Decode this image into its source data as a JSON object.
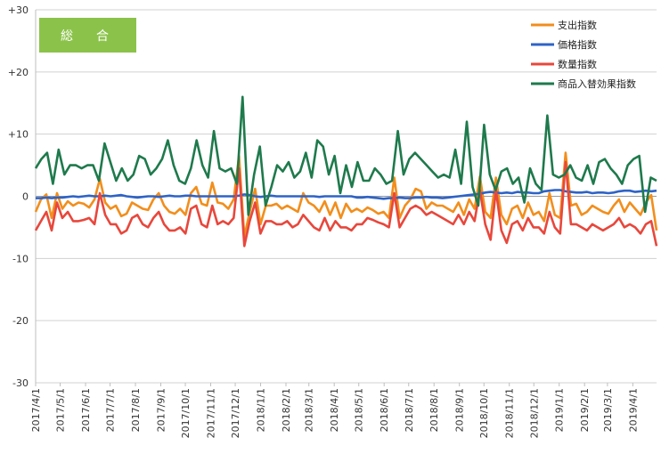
{
  "chart_data": {
    "type": "line",
    "title": "総　合",
    "ylim": [
      -30,
      30
    ],
    "yticks": [
      "+30",
      "+20",
      "+10",
      "0",
      "-10",
      "-20",
      "-30"
    ],
    "yticks_values": [
      30,
      20,
      10,
      0,
      -10,
      -20,
      -30
    ],
    "x_tick_labels": [
      "2017/4/1",
      "2017/5/1",
      "2017/6/1",
      "2017/7/1",
      "2017/8/1",
      "2017/9/1",
      "2017/10/1",
      "2017/11/1",
      "2017/12/1",
      "2018/1/1",
      "2018/2/1",
      "2018/3/1",
      "2018/4/1",
      "2018/5/1",
      "2018/6/1",
      "2018/7/1",
      "2018/8/1",
      "2018/9/1",
      "2018/10/1",
      "2018/11/1",
      "2018/12/1",
      "2019/1/1",
      "2019/2/1",
      "2019/3/1",
      "2019/4/1"
    ],
    "x_start": "2017/4/1",
    "x_end": "2019/4/30",
    "x_weekly_points": 109,
    "legend_position": "top-right",
    "grid": "horizontal",
    "series": [
      {
        "name": "支出指数",
        "color": "#F28E1C",
        "values": [
          -2.5,
          -0.5,
          0.3,
          -3.5,
          0.5,
          -2.0,
          -0.8,
          -1.5,
          -1.0,
          -1.2,
          -1.8,
          -0.5,
          2.8,
          -1.0,
          -2.0,
          -1.5,
          -3.2,
          -2.8,
          -1.0,
          -1.5,
          -2.0,
          -2.2,
          -0.5,
          0.5,
          -1.5,
          -2.5,
          -2.8,
          -2.0,
          -3.0,
          0.5,
          1.5,
          -1.2,
          -1.5,
          2.2,
          -1.0,
          -1.2,
          -2.0,
          -0.5,
          6.5,
          -6.5,
          -2.5,
          1.2,
          -4.5,
          -1.5,
          -1.5,
          -1.2,
          -2.0,
          -1.5,
          -2.0,
          -2.5,
          0.5,
          -1.0,
          -1.5,
          -2.5,
          -0.8,
          -3.0,
          -1.0,
          -3.5,
          -1.2,
          -2.5,
          -2.0,
          -2.5,
          -1.8,
          -2.2,
          -2.8,
          -2.5,
          -3.5,
          3.0,
          -3.5,
          -1.5,
          -0.5,
          1.2,
          0.8,
          -2.0,
          -1.0,
          -1.5,
          -1.5,
          -2.0,
          -2.5,
          -1.0,
          -3.0,
          -0.5,
          -2.0,
          3.2,
          -2.5,
          -3.5,
          3.0,
          -3.0,
          -4.5,
          -2.0,
          -1.5,
          -3.5,
          -1.0,
          -3.0,
          -2.5,
          -4.0,
          0.5,
          -3.0,
          -3.5,
          7.0,
          -1.5,
          -1.2,
          -3.0,
          -2.5,
          -1.5,
          -2.0,
          -2.5,
          -2.8,
          -1.5
        ],
        "tail": [
          -0.5,
          -2.5,
          -1.0,
          -2.0,
          -3.0,
          -1.0,
          0.2,
          -5.5
        ]
      },
      {
        "name": "価格指数",
        "color": "#2E63C7",
        "values": [
          -0.3,
          -0.3,
          -0.2,
          -0.3,
          -0.2,
          -0.2,
          -0.1,
          0.0,
          -0.1,
          0.0,
          0.1,
          0.0,
          0.0,
          0.1,
          0.0,
          0.1,
          0.2,
          0.0,
          -0.1,
          -0.2,
          -0.1,
          0.0,
          0.0,
          -0.1,
          0.0,
          0.1,
          0.0,
          0.0,
          0.1,
          0.1,
          0.0,
          0.0,
          0.0,
          0.0,
          0.0,
          0.0,
          0.0,
          0.0,
          0.1,
          0.3,
          0.2,
          0.0,
          -0.1,
          0.0,
          0.1,
          0.0,
          0.0,
          0.0,
          0.0,
          0.0,
          0.0,
          0.0,
          0.0,
          -0.1,
          0.0,
          0.0,
          0.0,
          0.0,
          0.0,
          0.0,
          -0.2,
          -0.2,
          -0.1,
          -0.2,
          -0.3,
          -0.4,
          -0.3,
          -0.3,
          -0.2,
          -0.3,
          -0.3,
          -0.2,
          -0.2,
          -0.1,
          -0.2,
          -0.2,
          -0.3,
          -0.2,
          -0.1,
          0.0,
          0.1,
          0.2,
          0.3,
          0.4,
          0.6,
          0.7,
          0.6,
          0.5,
          0.6,
          0.5,
          0.7,
          0.6,
          0.6,
          0.5,
          0.5,
          0.8,
          0.9,
          1.0,
          1.0,
          0.8,
          0.7,
          0.6,
          0.6,
          0.7,
          0.5,
          0.6,
          0.6,
          0.5,
          0.6
        ],
        "tail": [
          0.8,
          0.9,
          0.9,
          0.7,
          0.8,
          0.9,
          0.8,
          0.9
        ]
      },
      {
        "name": "数量指数",
        "color": "#E8473C",
        "values": [
          -5.5,
          -4.0,
          -2.5,
          -5.5,
          -1.0,
          -3.5,
          -2.5,
          -4.0,
          -4.0,
          -3.8,
          -3.5,
          -4.5,
          0.5,
          -3.0,
          -4.5,
          -4.5,
          -6.0,
          -5.5,
          -3.5,
          -3.0,
          -4.5,
          -5.0,
          -3.5,
          -2.5,
          -4.5,
          -5.5,
          -5.5,
          -5.0,
          -6.0,
          -2.0,
          -1.5,
          -4.5,
          -5.0,
          -1.5,
          -4.5,
          -4.0,
          -4.5,
          -3.5,
          4.5,
          -8.0,
          -4.0,
          -1.0,
          -6.0,
          -4.0,
          -4.0,
          -4.5,
          -4.5,
          -4.0,
          -5.0,
          -4.5,
          -3.0,
          -4.0,
          -5.0,
          -5.5,
          -3.5,
          -5.5,
          -4.0,
          -5.0,
          -5.0,
          -5.5,
          -4.5,
          -4.5,
          -3.5,
          -3.8,
          -4.2,
          -4.5,
          -5.0,
          0.5,
          -5.0,
          -3.5,
          -2.0,
          -1.5,
          -2.0,
          -3.0,
          -2.5,
          -3.0,
          -3.5,
          -4.0,
          -4.5,
          -3.0,
          -4.5,
          -2.5,
          -4.0,
          1.0,
          -4.5,
          -7.0,
          1.0,
          -5.5,
          -7.5,
          -4.5,
          -4.0,
          -5.5,
          -3.5,
          -5.0,
          -5.0,
          -6.0,
          -2.5,
          -5.0,
          -6.0,
          5.5,
          -4.5,
          -4.5,
          -5.0,
          -5.5,
          -4.5,
          -5.0,
          -5.5,
          -5.0,
          -4.5
        ],
        "tail": [
          -3.5,
          -5.0,
          -4.5,
          -5.0,
          -6.0,
          -4.5,
          -4.0,
          -8.0
        ]
      },
      {
        "name": "商品入替効果指数",
        "color": "#1E7A4C",
        "values": [
          4.5,
          6.0,
          7.0,
          2.0,
          7.5,
          3.5,
          5.0,
          5.0,
          4.5,
          5.0,
          5.0,
          2.5,
          8.5,
          5.5,
          2.5,
          4.5,
          2.5,
          3.5,
          6.5,
          6.0,
          3.5,
          4.5,
          6.0,
          9.0,
          5.0,
          2.5,
          2.0,
          4.5,
          9.0,
          5.0,
          3.0,
          10.5,
          4.5,
          4.0,
          4.5,
          2.0,
          16.0,
          -3.0,
          3.5,
          8.0,
          -1.5,
          1.5,
          5.0,
          4.0,
          5.5,
          3.0,
          4.0,
          7.0,
          3.0,
          9.0,
          8.0,
          3.5,
          6.5,
          0.5,
          5.0,
          1.5,
          5.5,
          2.5,
          2.5,
          4.5,
          3.5,
          2.0,
          2.5,
          10.5,
          3.5,
          6.0,
          7.0,
          6.0,
          5.0,
          4.0,
          3.0,
          3.5,
          3.0,
          7.5,
          2.0,
          12.0,
          1.5,
          -1.5,
          11.5,
          3.5,
          1.0,
          4.0,
          4.5,
          2.0,
          3.0,
          -1.0,
          4.5,
          2.0,
          1.0,
          13.0,
          3.5,
          3.0,
          3.5,
          5.0,
          3.0,
          2.5,
          5.0,
          2.0,
          5.5,
          6.0,
          4.5,
          3.5,
          2.0,
          5.0,
          6.0,
          6.5,
          -2.5,
          3.0,
          2.5
        ],
        "tail": []
      }
    ]
  },
  "badge": {
    "label": "総　合",
    "color": "#8BC34A"
  }
}
